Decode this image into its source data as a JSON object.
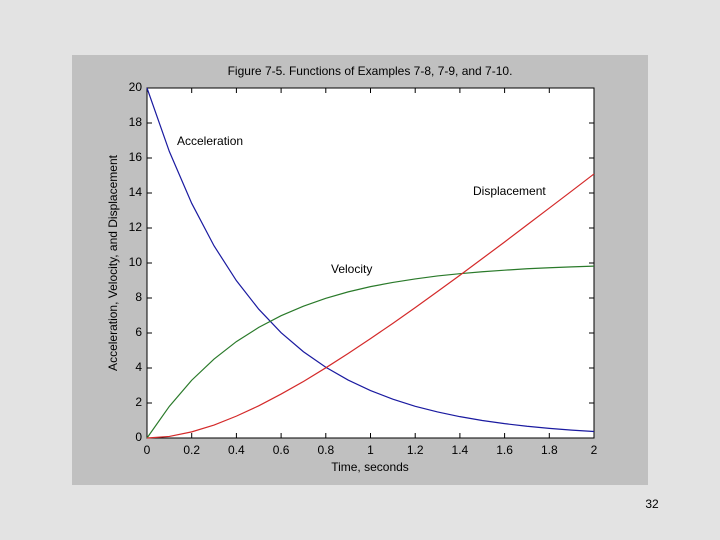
{
  "chart_data": {
    "type": "line",
    "title": "Figure 7-5. Functions of Examples 7-8, 7-9, and 7-10.",
    "xlabel": "Time, seconds",
    "ylabel": "Acceleration, Velocity, and Displacement",
    "x": [
      0,
      0.1,
      0.2,
      0.3,
      0.4,
      0.5,
      0.6,
      0.7,
      0.8,
      0.9,
      1.0,
      1.1,
      1.2,
      1.3,
      1.4,
      1.5,
      1.6,
      1.7,
      1.8,
      1.9,
      2.0
    ],
    "series": [
      {
        "name": "Acceleration",
        "color": "#1a1aa0",
        "values": [
          20,
          16.37,
          13.41,
          10.98,
          8.99,
          7.36,
          6.02,
          4.93,
          4.04,
          3.31,
          2.71,
          2.22,
          1.81,
          1.49,
          1.22,
          1.0,
          0.82,
          0.67,
          0.55,
          0.45,
          0.37
        ]
      },
      {
        "name": "Velocity",
        "color": "#2a7a2a",
        "values": [
          0,
          1.81,
          3.3,
          4.51,
          5.51,
          6.32,
          6.99,
          7.53,
          7.98,
          8.35,
          8.65,
          8.89,
          9.09,
          9.26,
          9.39,
          9.5,
          9.59,
          9.67,
          9.73,
          9.78,
          9.82
        ]
      },
      {
        "name": "Displacement",
        "color": "#d42a2a",
        "values": [
          0,
          0.09,
          0.35,
          0.74,
          1.25,
          1.84,
          2.51,
          3.23,
          4.01,
          4.83,
          5.68,
          6.55,
          7.45,
          8.37,
          9.3,
          10.25,
          11.2,
          12.17,
          13.14,
          14.11,
          15.09
        ]
      }
    ],
    "xlim": [
      0,
      2
    ],
    "xticks": [
      0,
      0.2,
      0.4,
      0.6,
      0.8,
      1,
      1.2,
      1.4,
      1.6,
      1.8,
      2
    ],
    "ylim": [
      0,
      20
    ],
    "yticks": [
      0,
      2,
      4,
      6,
      8,
      10,
      12,
      14,
      16,
      18,
      20
    ],
    "grid": false,
    "legend": false
  },
  "slide": {
    "page_number": "32"
  }
}
